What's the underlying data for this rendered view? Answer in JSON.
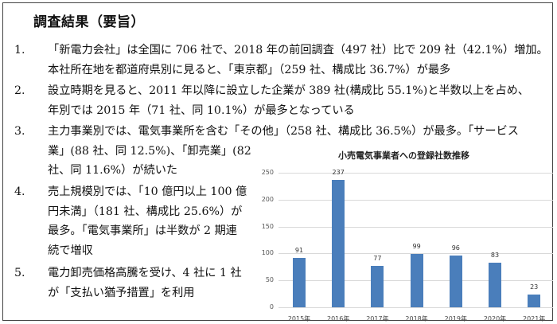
{
  "title": "調査結果（要旨）",
  "items": [
    {
      "num": "1.",
      "lines": [
        "「新電力会社」は全国に 706 社で、2018 年の前回調査（497 社）比で 209 社（42.1%）増加。",
        "本社所在地を都道府県別に見ると、「東京都」（259 社、構成比 36.7%）が最多"
      ]
    },
    {
      "num": "2.",
      "lines": [
        "設立時期を見ると、2011 年以降に設立した企業が 389 社(構成比 55.1%)と半数以上を占め、",
        "年別では 2015 年（71 社、同 10.1%）が最多となっている"
      ]
    },
    {
      "num": "3.",
      "lines": [
        "主力事業別では、電気事業所を含む「その他」（258 社、構成比 36.5%）が最多。「サービス",
        "業」(88 社、同 12.5%)、「卸売業」(82",
        "社、同 11.6%）が続いた"
      ]
    },
    {
      "num": "4.",
      "lines": [
        "売上規模別では、「10 億円以上 100 億",
        "円未満」（181 社、構成比 25.6%）が",
        "最多。「電気事業所」は半数が 2 期連",
        "続で増収"
      ]
    },
    {
      "num": "5.",
      "lines": [
        "電力卸売価格高騰を受け、4 社に 1 社",
        "が「支払い猶予措置」を利用"
      ]
    }
  ],
  "chart_data": {
    "type": "bar",
    "title": "小売電気事業者への登録社数推移",
    "categories": [
      "2015年",
      "2016年",
      "2017年",
      "2018年",
      "2019年",
      "2020年",
      "2021年"
    ],
    "values": [
      91,
      237,
      77,
      99,
      96,
      83,
      23
    ],
    "data_labels": [
      "91",
      "237",
      "77",
      "99",
      "96",
      "83",
      "23"
    ],
    "yticks": [
      "0",
      "50",
      "100",
      "150",
      "200",
      "250"
    ],
    "ylim": [
      0,
      250
    ],
    "xlabel": "",
    "ylabel": "",
    "grid": true,
    "legend": false,
    "bar_color": "#4a7ebb"
  }
}
